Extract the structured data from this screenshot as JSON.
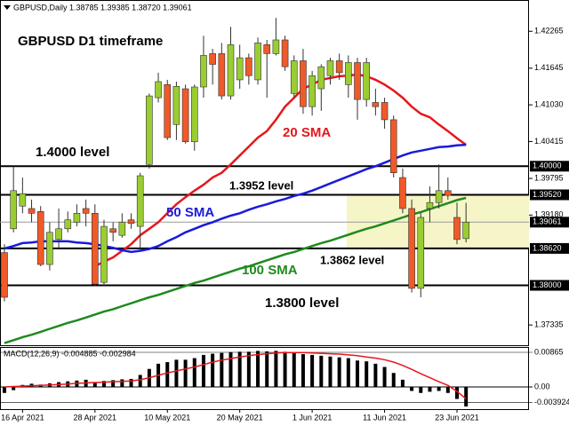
{
  "chart_data": {
    "type": "candlestick",
    "header": "GBPUSD,Daily  1.38785 1.39385 1.38720 1.39061",
    "title": "GBPUSD D1 timeframe",
    "categories": [
      null,
      null,
      "16 Apr 2021",
      null,
      null,
      null,
      null,
      null,
      null,
      null,
      "28 Apr 2021",
      null,
      null,
      null,
      null,
      null,
      null,
      null,
      "10 May 2021",
      null,
      null,
      null,
      null,
      null,
      null,
      null,
      "20 May 2021",
      null,
      null,
      null,
      null,
      null,
      null,
      null,
      "1 Jun 2021",
      null,
      null,
      null,
      null,
      null,
      null,
      null,
      "11 Jun 2021",
      null,
      null,
      null,
      null,
      null,
      null,
      null,
      "23 Jun 2021",
      null
    ],
    "open": [
      1.3855,
      1.3895,
      1.3933,
      1.3929,
      1.3924,
      1.3835,
      1.3877,
      1.3895,
      1.3906,
      1.3929,
      1.3921,
      1.3805,
      1.3895,
      1.3884,
      1.391,
      1.3899,
      1.4003,
      1.4115,
      1.4137,
      1.407,
      1.413,
      1.4041,
      1.4133,
      1.4189,
      1.4189,
      1.4118,
      1.4145,
      1.4182,
      1.4145,
      1.4204,
      1.4189,
      1.4212,
      1.4122,
      1.4177,
      1.41,
      1.413,
      1.4152,
      1.4177,
      1.4137,
      1.4174,
      1.4112,
      1.4107,
      1.4107,
      1.4078,
      1.3981,
      1.3929,
      1.3795,
      1.3929,
      1.3939,
      1.3959,
      1.3914,
      1.38785
    ],
    "high": [
      1.3869,
      1.3999,
      1.3981,
      1.3944,
      1.3933,
      1.3906,
      1.3929,
      1.3924,
      1.3936,
      1.3944,
      1.3936,
      1.391,
      1.3906,
      1.3921,
      1.3921,
      1.3989,
      1.4122,
      1.4157,
      1.4145,
      1.4142,
      1.4137,
      1.4137,
      1.4219,
      1.4197,
      1.4207,
      1.4234,
      1.4204,
      1.4189,
      1.4216,
      1.4212,
      1.4249,
      1.4219,
      1.4186,
      1.4197,
      1.416,
      1.4171,
      1.4182,
      1.4189,
      1.4186,
      1.4182,
      1.4182,
      1.413,
      1.4115,
      1.4085,
      1.3996,
      1.3944,
      1.3921,
      1.3966,
      1.4003,
      1.3981,
      1.3939,
      1.39385
    ],
    "low": [
      1.3773,
      1.3889,
      1.3921,
      1.3906,
      1.3832,
      1.3825,
      1.3862,
      1.3889,
      1.3899,
      1.3899,
      1.3799,
      1.3799,
      1.3874,
      1.388,
      1.3895,
      1.3859,
      1.3996,
      1.4107,
      1.4044,
      1.4044,
      1.4038,
      1.4026,
      1.4115,
      1.4137,
      1.4112,
      1.4112,
      1.413,
      1.4137,
      1.4137,
      1.4115,
      1.4186,
      1.416,
      1.4115,
      1.4088,
      1.4085,
      1.4093,
      1.4137,
      1.4145,
      1.4115,
      1.4078,
      1.41,
      1.4085,
      1.4063,
      1.3981,
      1.3921,
      1.3788,
      1.378,
      1.3906,
      1.3929,
      1.3944,
      1.3869,
      1.3872
    ],
    "close": [
      1.378,
      1.3959,
      1.3954,
      1.3921,
      1.3835,
      1.3889,
      1.3895,
      1.391,
      1.3921,
      1.3921,
      1.3802,
      1.3899,
      1.3889,
      1.3906,
      1.3904,
      1.3984,
      1.4118,
      1.4142,
      1.4048,
      1.4134,
      1.4041,
      1.4133,
      1.4186,
      1.4171,
      1.4118,
      1.4204,
      1.4182,
      1.4152,
      1.4207,
      1.4189,
      1.4212,
      1.4167,
      1.4177,
      1.41,
      1.4152,
      1.4167,
      1.4177,
      1.4157,
      1.4174,
      1.4112,
      1.4174,
      1.41,
      1.4078,
      1.3989,
      1.3929,
      1.3795,
      1.3914,
      1.3939,
      1.3959,
      1.3951,
      1.3877,
      1.39061
    ],
    "up_color": "#9acd32",
    "down_color": "#f05a28",
    "series": [
      {
        "name": "20 SMA",
        "color": "#e8161b",
        "values": [
          null,
          null,
          null,
          null,
          null,
          null,
          null,
          null,
          null,
          null,
          1.3832,
          1.384,
          1.3847,
          1.3858,
          1.3869,
          1.3884,
          1.3895,
          1.3906,
          1.3921,
          1.3936,
          1.3948,
          1.3959,
          1.3969,
          1.3981,
          1.3989,
          1.4003,
          1.4018,
          1.4033,
          1.4048,
          1.4059,
          1.4078,
          1.41,
          1.4115,
          1.413,
          1.4137,
          1.4145,
          1.4148,
          1.4151,
          1.4152,
          1.4154,
          1.4151,
          1.4145,
          1.4137,
          1.4127,
          1.4115,
          1.41,
          1.4088,
          1.4082,
          1.407,
          1.4059,
          1.4047,
          1.4036
        ]
      },
      {
        "name": "50 SMA",
        "color": "#1a1adc",
        "values": [
          1.3862,
          1.3866,
          1.3871,
          1.3872,
          1.3874,
          1.3874,
          1.3874,
          1.3874,
          1.3872,
          1.3871,
          1.3869,
          1.3866,
          1.3863,
          1.3859,
          1.3856,
          1.3858,
          1.3861,
          1.3866,
          1.3874,
          1.3881,
          1.3889,
          1.3895,
          1.3901,
          1.3906,
          1.3912,
          1.3917,
          1.3921,
          1.3927,
          1.3932,
          1.3936,
          1.3941,
          1.3945,
          1.395,
          1.3954,
          1.3959,
          1.3965,
          1.3971,
          1.3977,
          1.3983,
          1.3989,
          1.3995,
          1.4,
          1.4006,
          1.4012,
          1.4018,
          1.4023,
          1.4026,
          1.4029,
          1.4032,
          1.4033,
          1.4035,
          1.4036
        ]
      },
      {
        "name": "100 SMA",
        "color": "#1e8a1e",
        "values": [
          1.3703,
          1.3708,
          1.3713,
          1.3717,
          1.3722,
          1.3727,
          1.3732,
          1.3737,
          1.3741,
          1.3746,
          1.3751,
          1.3756,
          1.376,
          1.3765,
          1.377,
          1.3775,
          1.378,
          1.3784,
          1.3789,
          1.3794,
          1.3799,
          1.3804,
          1.3808,
          1.3813,
          1.3818,
          1.3823,
          1.3828,
          1.3832,
          1.3837,
          1.3842,
          1.3847,
          1.3852,
          1.3856,
          1.3861,
          1.3866,
          1.3871,
          1.3875,
          1.388,
          1.3885,
          1.389,
          1.3895,
          1.3899,
          1.3904,
          1.3909,
          1.3914,
          1.3919,
          1.3923,
          1.3928,
          1.3933,
          1.3938,
          1.3943,
          1.3947
        ]
      }
    ],
    "levels": [
      {
        "value": 1.4,
        "label": "1.40000",
        "note": "1.4000 level"
      },
      {
        "value": 1.3952,
        "label": "1.39520",
        "note": "1.3952 level"
      },
      {
        "value": 1.3862,
        "label": "1.38620",
        "note": "1.3862 level"
      },
      {
        "value": 1.38,
        "label": "1.38000",
        "note": "1.3800 level"
      },
      {
        "value": 1.39061,
        "label": "1.39061"
      }
    ],
    "zone_color": "#f5f5c8",
    "ylim": [
      1.3698,
      1.4279
    ],
    "yticks": [
      1.42265,
      1.41645,
      {
        "value": 1.4103,
        "label": "1.41030"
      },
      1.40415,
      1.39795,
      {
        "value": 1.3918,
        "label": "1.39180"
      },
      1.37335
    ],
    "macd": {
      "title": "MACD(12,26,9) -0.004885 -0.002984",
      "histogram": [
        -0.0015,
        -0.0008,
        0.0005,
        0.0008,
        0.0006,
        0.0009,
        0.0012,
        0.0014,
        0.0016,
        0.0018,
        0.0012,
        0.0015,
        0.0017,
        0.0019,
        0.002,
        0.003,
        0.0045,
        0.0058,
        0.0062,
        0.0068,
        0.0068,
        0.0072,
        0.008,
        0.0083,
        0.0085,
        0.0087,
        0.0088,
        0.0088,
        0.009,
        0.0089,
        0.009,
        0.0088,
        0.0086,
        0.0082,
        0.008,
        0.0078,
        0.0076,
        0.0074,
        0.0072,
        0.0066,
        0.0064,
        0.0058,
        0.005,
        0.0035,
        0.0018,
        -0.001,
        -0.0015,
        -0.0012,
        -0.001,
        -0.0015,
        -0.003,
        -0.004885
      ],
      "signal": [
        0.0,
        0.0001,
        0.0002,
        0.0003,
        0.0004,
        0.0005,
        0.0006,
        0.0007,
        0.0009,
        0.001,
        0.0011,
        0.0012,
        0.0013,
        0.0014,
        0.0015,
        0.0018,
        0.0023,
        0.0029,
        0.0035,
        0.004,
        0.0045,
        0.005,
        0.0056,
        0.0062,
        0.0067,
        0.0071,
        0.0075,
        0.0078,
        0.0081,
        0.0083,
        0.0085,
        0.0086,
        0.0086,
        0.0086,
        0.0085,
        0.0084,
        0.0083,
        0.0082,
        0.008,
        0.0078,
        0.0075,
        0.0072,
        0.0068,
        0.0062,
        0.0054,
        0.0044,
        0.0033,
        0.0023,
        0.0013,
        0.0004,
        -0.0011,
        -0.002984
      ],
      "histogram_color": "#000000",
      "signal_color": "#e8161b",
      "ylim": [
        -0.00577,
        0.00976
      ],
      "yticks": [
        0.00865,
        {
          "value": 0,
          "label": "0.00"
        },
        -0.003924
      ]
    }
  }
}
